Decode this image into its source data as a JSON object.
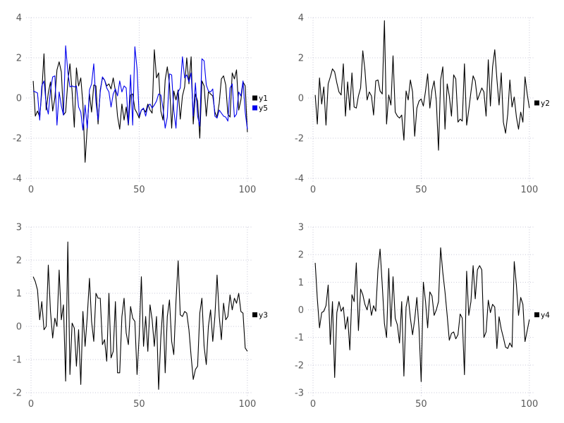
{
  "figure": {
    "background": "#ffffff",
    "grid_color": "#c8c8d8",
    "tick_label_color": "#595959",
    "legend_text_color": "#000000",
    "series_black": "#000000",
    "series_blue": "#0000ee"
  },
  "chart_data": [
    {
      "type": "line",
      "position": "top-left",
      "title": "",
      "xlabel": "",
      "ylabel": "",
      "x_range": [
        1,
        100
      ],
      "x_step": 1,
      "xlim": [
        0,
        102
      ],
      "ylim": [
        -4,
        4
      ],
      "x_ticks": [
        0,
        50,
        100
      ],
      "y_ticks": [
        -4,
        -2,
        0,
        2,
        4
      ],
      "grid": true,
      "legend_position": "right-center",
      "legend": [
        {
          "label": "y1",
          "color": "#000000"
        },
        {
          "label": "y5",
          "color": "#0000ee"
        }
      ],
      "series": [
        {
          "name": "y1",
          "color": "#000000",
          "values": [
            0.85,
            -0.9,
            -0.65,
            -0.95,
            0.3,
            2.2,
            -0.6,
            0.25,
            0.8,
            -0.65,
            0.0,
            1.4,
            1.8,
            1.3,
            -0.85,
            -0.7,
            0.8,
            1.7,
            0.3,
            -1.45,
            1.5,
            0.6,
            1.0,
            -0.3,
            -3.2,
            -1.4,
            0.2,
            -0.7,
            0.65,
            0.6,
            -1.3,
            0.4,
            1.0,
            0.9,
            0.6,
            0.7,
            0.45,
            1.0,
            0.35,
            -0.9,
            -1.55,
            -0.3,
            -1.1,
            -0.45,
            -1.35,
            0.15,
            0.2,
            -0.55,
            -0.75,
            -1.0,
            -0.6,
            -0.55,
            -0.7,
            -0.3,
            -0.6,
            -0.75,
            2.4,
            1.0,
            1.25,
            -0.65,
            -1.1,
            0.9,
            1.55,
            0.7,
            -1.5,
            0.35,
            -0.1,
            0.4,
            -1.05,
            0.1,
            0.55,
            2.0,
            0.7,
            2.05,
            -1.3,
            0.2,
            -0.15,
            -2.0,
            0.85,
            0.6,
            -0.9,
            0.3,
            0.2,
            0.1,
            -0.7,
            -0.95,
            -0.25,
            0.95,
            1.1,
            0.65,
            -0.8,
            -0.95,
            1.25,
            0.95,
            1.4,
            -0.6,
            -0.1,
            0.8,
            0.6,
            -1.7
          ]
        },
        {
          "name": "y5",
          "color": "#0000ee",
          "values": [
            0.35,
            0.3,
            0.25,
            -1.1,
            0.6,
            0.85,
            -0.3,
            -0.8,
            0.4,
            1.05,
            1.1,
            -1.35,
            0.3,
            -0.4,
            -0.85,
            2.6,
            1.3,
            0.55,
            0.6,
            0.55,
            0.6,
            -0.45,
            -0.7,
            -1.6,
            -0.35,
            -1.5,
            0.4,
            0.7,
            1.7,
            -0.2,
            -1.1,
            0.3,
            1.05,
            0.9,
            0.5,
            0.3,
            -0.45,
            0.2,
            0.45,
            0.1,
            0.85,
            0.3,
            0.6,
            0.5,
            -1.3,
            1.15,
            -1.35,
            2.55,
            1.45,
            -0.9,
            -0.6,
            -0.5,
            -0.9,
            -0.4,
            -0.3,
            -0.5,
            -0.35,
            -0.15,
            0.2,
            0.15,
            -0.5,
            -1.5,
            -0.95,
            1.2,
            1.15,
            -0.6,
            -1.5,
            0.3,
            0.5,
            2.05,
            1.0,
            1.15,
            0.8,
            1.25,
            -0.9,
            0.75,
            -0.9,
            -1.4,
            1.95,
            1.85,
            0.65,
            0.35,
            0.3,
            0.45,
            -0.9,
            -1.0,
            -0.6,
            -0.75,
            -0.9,
            -0.95,
            -1.15,
            0.5,
            0.7,
            -0.95,
            -0.8,
            0.3,
            0.1,
            0.85,
            -0.7,
            -1.55
          ]
        }
      ]
    },
    {
      "type": "line",
      "position": "top-right",
      "title": "",
      "xlabel": "",
      "ylabel": "",
      "x_range": [
        1,
        100
      ],
      "x_step": 1,
      "xlim": [
        0,
        102
      ],
      "ylim": [
        -4,
        4
      ],
      "x_ticks": [
        0,
        50,
        100
      ],
      "y_ticks": [
        -4,
        -2,
        0,
        2,
        4
      ],
      "grid": true,
      "legend_position": "right-center",
      "legend": [
        {
          "label": "y2",
          "color": "#000000"
        }
      ],
      "series": [
        {
          "name": "y2",
          "color": "#000000",
          "values": [
            0.15,
            -1.3,
            1.0,
            -0.3,
            0.55,
            -1.35,
            0.7,
            1.05,
            1.45,
            1.3,
            0.75,
            0.3,
            0.15,
            1.7,
            -0.9,
            0.8,
            -0.6,
            1.25,
            -0.45,
            -0.5,
            0.1,
            0.5,
            2.35,
            1.4,
            -0.1,
            0.3,
            0.1,
            -0.85,
            0.85,
            0.9,
            0.35,
            0.2,
            3.85,
            -1.3,
            0.15,
            -0.35,
            2.1,
            -0.7,
            -0.9,
            -1.0,
            -0.85,
            -2.1,
            0.35,
            -0.1,
            0.9,
            0.3,
            -1.9,
            -0.5,
            -0.15,
            -0.05,
            -0.4,
            0.35,
            1.2,
            -0.5,
            0.4,
            0.85,
            -0.15,
            -2.6,
            0.9,
            1.55,
            -1.55,
            0.7,
            0.1,
            -0.9,
            1.15,
            0.95,
            -1.2,
            -1.05,
            -1.15,
            1.7,
            -1.35,
            -0.6,
            0.3,
            1.1,
            0.85,
            -0.1,
            0.2,
            0.5,
            0.3,
            -0.9,
            1.9,
            -0.4,
            1.55,
            2.4,
            0.95,
            -0.35,
            1.25,
            -1.2,
            -1.75,
            -0.8,
            0.9,
            -0.45,
            0.05,
            -0.95,
            -1.55,
            -0.7,
            -1.2,
            1.05,
            0.2,
            -0.5
          ]
        }
      ]
    },
    {
      "type": "line",
      "position": "bottom-left",
      "title": "",
      "xlabel": "",
      "ylabel": "",
      "x_range": [
        1,
        100
      ],
      "x_step": 1,
      "xlim": [
        0,
        102
      ],
      "ylim": [
        -2,
        3
      ],
      "x_ticks": [
        0,
        50,
        100
      ],
      "y_ticks": [
        -2,
        -1,
        0,
        1,
        2,
        3
      ],
      "grid": true,
      "legend_position": "right-center",
      "legend": [
        {
          "label": "y3",
          "color": "#000000"
        }
      ],
      "series": [
        {
          "name": "y3",
          "color": "#000000",
          "values": [
            1.5,
            1.35,
            1.1,
            0.2,
            0.75,
            -0.1,
            0.0,
            1.85,
            0.45,
            -0.35,
            0.25,
            0.0,
            1.7,
            0.2,
            0.65,
            -1.65,
            2.55,
            -1.45,
            0.1,
            -0.05,
            -1.2,
            -0.1,
            -1.75,
            0.45,
            -0.6,
            0.3,
            1.45,
            0.15,
            -0.45,
            1.0,
            0.85,
            0.85,
            -0.55,
            -0.4,
            -1.05,
            1.0,
            -0.95,
            -0.75,
            0.75,
            -1.4,
            -1.4,
            0.3,
            0.85,
            -0.2,
            -0.55,
            0.6,
            0.25,
            0.15,
            -1.45,
            -0.3,
            1.5,
            -0.6,
            0.3,
            -0.75,
            0.65,
            0.2,
            -0.6,
            0.3,
            -1.9,
            -0.35,
            0.65,
            -1.4,
            0.3,
            0.8,
            -0.45,
            -0.85,
            0.75,
            1.98,
            0.35,
            0.3,
            0.45,
            0.4,
            -0.1,
            -0.9,
            -1.6,
            -1.3,
            -1.2,
            0.4,
            0.85,
            -0.6,
            -1.15,
            0.0,
            0.5,
            -0.45,
            0.3,
            1.55,
            0.3,
            -0.4,
            0.7,
            0.2,
            0.3,
            0.95,
            0.5,
            0.85,
            0.7,
            1.0,
            0.45,
            0.4,
            -0.65,
            -0.75
          ]
        }
      ]
    },
    {
      "type": "line",
      "position": "bottom-right",
      "title": "",
      "xlabel": "",
      "ylabel": "",
      "x_range": [
        1,
        100
      ],
      "x_step": 1,
      "xlim": [
        0,
        102
      ],
      "ylim": [
        -3,
        3
      ],
      "x_ticks": [
        0,
        50,
        100
      ],
      "y_ticks": [
        -3,
        -2,
        -1,
        0,
        1,
        2,
        3
      ],
      "grid": true,
      "legend_position": "right-center",
      "legend": [
        {
          "label": "y4",
          "color": "#000000"
        }
      ],
      "series": [
        {
          "name": "y4",
          "color": "#000000",
          "values": [
            1.7,
            0.4,
            -0.65,
            -0.1,
            -0.05,
            0.15,
            0.9,
            -1.25,
            0.3,
            -2.45,
            -0.1,
            0.3,
            -0.05,
            0.1,
            -0.7,
            -0.25,
            -1.45,
            0.55,
            0.3,
            1.7,
            -0.75,
            0.75,
            0.55,
            0.2,
            0.0,
            0.4,
            -0.2,
            0.15,
            -0.05,
            1.45,
            2.2,
            0.9,
            -0.5,
            -1.0,
            1.5,
            -0.6,
            1.2,
            -0.3,
            -0.55,
            -1.2,
            0.3,
            -2.4,
            0.1,
            0.5,
            -0.3,
            -0.9,
            -0.35,
            0.45,
            -0.7,
            -2.6,
            1.0,
            0.3,
            -0.65,
            0.65,
            0.5,
            -0.2,
            0.0,
            0.3,
            2.25,
            1.35,
            0.65,
            -0.2,
            -1.1,
            -0.85,
            -0.8,
            -1.05,
            -0.9,
            -0.15,
            -0.3,
            -2.35,
            1.4,
            -0.2,
            0.3,
            1.6,
            0.4,
            1.45,
            1.6,
            1.45,
            -1.0,
            -0.8,
            0.35,
            -0.1,
            0.2,
            0.1,
            -1.4,
            -0.25,
            -0.7,
            -1.0,
            -1.35,
            -1.4,
            -1.2,
            -1.35,
            1.75,
            0.9,
            -0.2,
            0.45,
            0.2,
            -1.15,
            -0.75,
            -0.35
          ]
        }
      ]
    }
  ]
}
